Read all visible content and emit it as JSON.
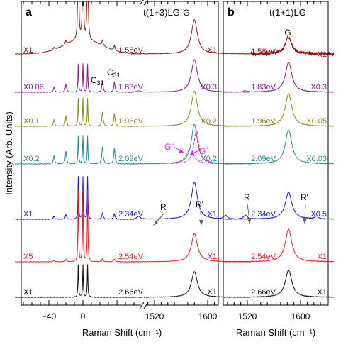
{
  "chart_data": [
    {
      "type": "line",
      "panel_label": "a",
      "title": "t(1+3)LG",
      "xlabel": "Raman Shift (cm⁻¹)",
      "ylabel": "Intensity (Arb. Units)",
      "axis_break": true,
      "x_segments": [
        {
          "xlim": [
            -80,
            60
          ],
          "ticks": [
            -40,
            0
          ]
        },
        {
          "xlim": [
            1485,
            1665
          ],
          "ticks": [
            1520,
            1600
          ]
        }
      ],
      "peak_labels": {
        "g": "G",
        "c32": "C",
        "c32_sub": "32",
        "c31": "C",
        "c31_sub": "31",
        "r": "R",
        "rp": "R'",
        "gm": "G",
        "gm_sup": "−",
        "gp": "G",
        "gp_sup": "+"
      },
      "series": [
        {
          "name": "1.58eV",
          "color": "#8b1a1a",
          "left_scale": "X1",
          "right_scale": "X1"
        },
        {
          "name": "1.83eV",
          "color": "#8a1f8a",
          "left_scale": "X0.06",
          "right_scale": "X0.3"
        },
        {
          "name": "1.96eV",
          "color": "#8c8a1e",
          "left_scale": "X0.1",
          "right_scale": "X0.2"
        },
        {
          "name": "2.09eV",
          "color": "#2a8a8a",
          "left_scale": "X0.2",
          "right_scale": "X0.2"
        },
        {
          "name": "2.34eV",
          "color": "#1a1ad4",
          "left_scale": "X1",
          "right_scale": "X1"
        },
        {
          "name": "2.54eV",
          "color": "#ee2020",
          "left_scale": "X5",
          "right_scale": "X1"
        },
        {
          "name": "2.66eV",
          "color": "#111111",
          "left_scale": "X1",
          "right_scale": "X1"
        }
      ]
    },
    {
      "type": "line",
      "panel_label": "b",
      "title": "t(1+1)LG",
      "xlabel": "Raman Shift (cm⁻¹)",
      "xlim": [
        1480,
        1650
      ],
      "ticks": [
        1520,
        1600
      ],
      "peak_labels": {
        "g": "G",
        "r": "R",
        "rp": "R'"
      },
      "series": [
        {
          "name": "1.58eV",
          "color": "#8b1010",
          "scale": "X1"
        },
        {
          "name": "1.83eV",
          "color": "#8a1f8a",
          "scale": "X0.3"
        },
        {
          "name": "1.96eV",
          "color": "#8c8a1e",
          "scale": "X0.05"
        },
        {
          "name": "2.09eV",
          "color": "#2a8a8a",
          "scale": "X0.03"
        },
        {
          "name": "2.34eV",
          "color": "#1a1ad4",
          "scale": "X0.5"
        },
        {
          "name": "2.54eV",
          "color": "#ee2020",
          "scale": "X1"
        },
        {
          "name": "2.66eV",
          "color": "#111111",
          "scale": "X1"
        }
      ]
    }
  ]
}
